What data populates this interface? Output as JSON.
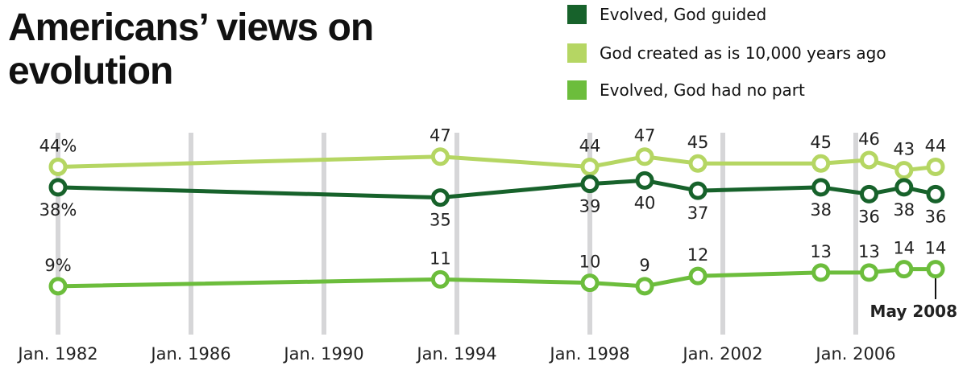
{
  "chart_data": {
    "type": "line",
    "title": "Americans’ views on evolution",
    "xlabel": "",
    "ylabel": "",
    "x_ticks": [
      1982,
      1986,
      1990,
      1994,
      1998,
      2002,
      2006
    ],
    "x_tick_labels": [
      "Jan. 1982",
      "Jan. 1986",
      "Jan. 1990",
      "Jan. 1994",
      "Jan. 1998",
      "Jan. 2002",
      "Jan. 2006"
    ],
    "xlim": [
      1982,
      2008.4
    ],
    "ylim": [
      0,
      50
    ],
    "grid": "vertical",
    "legend_position": "top-right",
    "x": [
      1982,
      1993.5,
      1998,
      1999.65,
      2001.25,
      2004.95,
      2006.4,
      2007.45,
      2008.4
    ],
    "series": [
      {
        "name": "Evolved, God guided",
        "color": "#17622b",
        "values": [
          38,
          35,
          39,
          40,
          37,
          38,
          36,
          38,
          36
        ],
        "labels": [
          "38%",
          "35",
          "39",
          "40",
          "37",
          "38",
          "36",
          "38",
          "36"
        ],
        "label_pos": "below"
      },
      {
        "name": "God created as is 10,000 years ago",
        "color": "#b5d663",
        "values": [
          44,
          47,
          44,
          47,
          45,
          45,
          46,
          43,
          44
        ],
        "labels": [
          "44%",
          "47",
          "44",
          "47",
          "45",
          "45",
          "46",
          "43",
          "44"
        ],
        "label_pos": "above"
      },
      {
        "name": "Evolved, God had no part",
        "color": "#6cbd3c",
        "values": [
          9,
          11,
          10,
          9,
          12,
          13,
          13,
          14,
          14
        ],
        "labels": [
          "9%",
          "11",
          "10",
          "9",
          "12",
          "13",
          "13",
          "14",
          "14"
        ],
        "label_pos": "above"
      }
    ],
    "annotations": [
      "May 2008"
    ]
  }
}
